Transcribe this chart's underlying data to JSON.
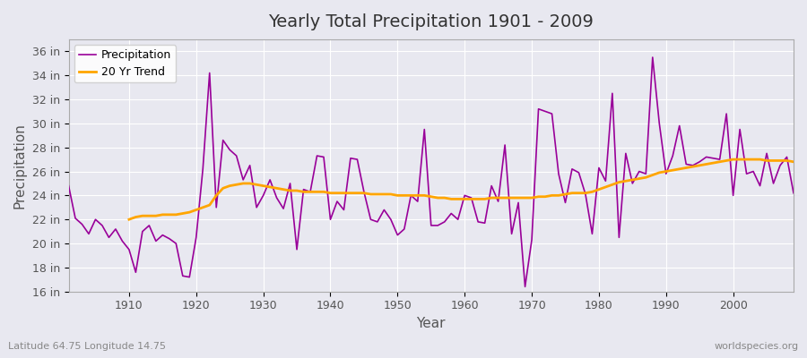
{
  "title": "Yearly Total Precipitation 1901 - 2009",
  "xlabel": "Year",
  "ylabel": "Precipitation",
  "subtitle": "Latitude 64.75 Longitude 14.75",
  "watermark": "worldspecies.org",
  "bg_color": "#e8e8f0",
  "plot_bg_color": "#e8e8f0",
  "precip_color": "#990099",
  "trend_color": "#FFA500",
  "ylim": [
    16,
    37
  ],
  "yticks": [
    16,
    18,
    20,
    22,
    24,
    26,
    28,
    30,
    32,
    34,
    36
  ],
  "xticks": [
    1910,
    1920,
    1930,
    1940,
    1950,
    1960,
    1970,
    1980,
    1990,
    2000
  ],
  "years": [
    1901,
    1902,
    1903,
    1904,
    1905,
    1906,
    1907,
    1908,
    1909,
    1910,
    1911,
    1912,
    1913,
    1914,
    1915,
    1916,
    1917,
    1918,
    1919,
    1920,
    1921,
    1922,
    1923,
    1924,
    1925,
    1926,
    1927,
    1928,
    1929,
    1930,
    1931,
    1932,
    1933,
    1934,
    1935,
    1936,
    1937,
    1938,
    1939,
    1940,
    1941,
    1942,
    1943,
    1944,
    1945,
    1946,
    1947,
    1948,
    1949,
    1950,
    1951,
    1952,
    1953,
    1954,
    1955,
    1956,
    1957,
    1958,
    1959,
    1960,
    1961,
    1962,
    1963,
    1964,
    1965,
    1966,
    1967,
    1968,
    1969,
    1970,
    1971,
    1972,
    1973,
    1974,
    1975,
    1976,
    1977,
    1978,
    1979,
    1980,
    1981,
    1982,
    1983,
    1984,
    1985,
    1986,
    1987,
    1988,
    1989,
    1990,
    1991,
    1992,
    1993,
    1994,
    1995,
    1996,
    1997,
    1998,
    1999,
    2000,
    2001,
    2002,
    2003,
    2004,
    2005,
    2006,
    2007,
    2008,
    2009
  ],
  "precip": [
    24.8,
    22.1,
    21.6,
    20.8,
    22.0,
    21.5,
    20.5,
    21.2,
    20.2,
    19.5,
    17.6,
    21.0,
    21.5,
    20.2,
    20.7,
    20.4,
    20.0,
    17.3,
    17.2,
    20.5,
    26.2,
    34.2,
    23.0,
    28.6,
    27.8,
    27.3,
    25.3,
    26.5,
    23.0,
    24.0,
    25.3,
    23.8,
    22.9,
    25.0,
    19.5,
    24.5,
    24.3,
    27.3,
    27.2,
    22.0,
    23.5,
    22.8,
    27.1,
    27.0,
    24.3,
    22.0,
    21.8,
    22.8,
    22.0,
    20.7,
    21.2,
    24.0,
    23.5,
    29.5,
    21.5,
    21.5,
    21.8,
    22.5,
    22.0,
    24.0,
    23.8,
    21.8,
    21.7,
    24.8,
    23.5,
    28.2,
    20.8,
    23.4,
    16.4,
    20.3,
    31.2,
    31.0,
    30.8,
    25.8,
    23.4,
    26.2,
    25.9,
    24.1,
    20.8,
    26.3,
    25.2,
    32.5,
    20.5,
    27.5,
    25.0,
    26.0,
    25.8,
    35.5,
    30.0,
    25.8,
    27.3,
    29.8,
    26.6,
    26.5,
    26.8,
    27.2,
    27.1,
    27.0,
    30.8,
    24.0,
    29.5,
    25.8,
    26.0,
    24.8,
    27.5,
    25.0,
    26.5,
    27.2,
    24.2
  ],
  "trend_years": [
    1910,
    1911,
    1912,
    1913,
    1914,
    1915,
    1916,
    1917,
    1918,
    1919,
    1920,
    1921,
    1922,
    1923,
    1924,
    1925,
    1926,
    1927,
    1928,
    1929,
    1930,
    1931,
    1932,
    1933,
    1934,
    1935,
    1936,
    1937,
    1938,
    1939,
    1940,
    1941,
    1942,
    1943,
    1944,
    1945,
    1946,
    1947,
    1948,
    1949,
    1950,
    1951,
    1952,
    1953,
    1954,
    1955,
    1956,
    1957,
    1958,
    1959,
    1960,
    1961,
    1962,
    1963,
    1964,
    1965,
    1966,
    1967,
    1968,
    1969,
    1970,
    1971,
    1972,
    1973,
    1974,
    1975,
    1976,
    1977,
    1978,
    1979,
    1980,
    1981,
    1982,
    1983,
    1984,
    1985,
    1986,
    1987,
    1988,
    1989,
    1990,
    1991,
    1992,
    1993,
    1994,
    1995,
    1996,
    1997,
    1998,
    1999,
    2000,
    2001,
    2002,
    2003,
    2004,
    2005,
    2006,
    2007,
    2008,
    2009
  ],
  "trend": [
    22.0,
    22.2,
    22.3,
    22.3,
    22.3,
    22.4,
    22.4,
    22.4,
    22.5,
    22.6,
    22.8,
    23.0,
    23.2,
    24.0,
    24.6,
    24.8,
    24.9,
    25.0,
    25.0,
    24.9,
    24.8,
    24.7,
    24.6,
    24.5,
    24.4,
    24.4,
    24.3,
    24.3,
    24.3,
    24.3,
    24.2,
    24.2,
    24.2,
    24.2,
    24.2,
    24.2,
    24.1,
    24.1,
    24.1,
    24.1,
    24.0,
    24.0,
    24.0,
    24.0,
    24.0,
    23.9,
    23.8,
    23.8,
    23.7,
    23.7,
    23.7,
    23.7,
    23.7,
    23.7,
    23.8,
    23.8,
    23.8,
    23.8,
    23.8,
    23.8,
    23.8,
    23.9,
    23.9,
    24.0,
    24.0,
    24.1,
    24.2,
    24.2,
    24.2,
    24.3,
    24.5,
    24.7,
    24.9,
    25.1,
    25.2,
    25.3,
    25.4,
    25.5,
    25.7,
    25.9,
    26.0,
    26.1,
    26.2,
    26.3,
    26.4,
    26.5,
    26.6,
    26.7,
    26.8,
    26.9,
    27.0,
    27.0,
    27.0,
    27.0,
    27.0,
    26.9,
    26.9,
    26.9,
    26.9,
    26.8
  ]
}
